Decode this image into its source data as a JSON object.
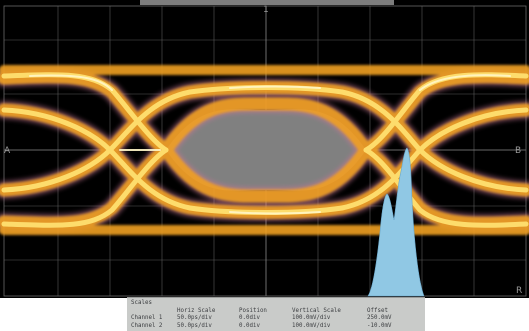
{
  "markers": {
    "top": "1",
    "left": "A",
    "right": "B",
    "bottom_right": "R"
  },
  "scale_panel": {
    "title": "Scales",
    "columns": [
      "Horiz Scale",
      "Position",
      "Vertical Scale",
      "Offset"
    ],
    "rows": [
      {
        "label": "Channel 1",
        "horiz_scale": "50.0ps/div",
        "position": "0.0div",
        "vertical_scale": "100.0mV/div",
        "offset": "250.0mV"
      },
      {
        "label": "Channel 2",
        "horiz_scale": "50.0ps/div",
        "position": "0.0div",
        "vertical_scale": "100.0mV/div",
        "offset": "-10.0mV"
      }
    ]
  },
  "colors": {
    "background": "#000000",
    "grid": "#5a5a5a",
    "eye_hot": "#ffe070",
    "eye_mid": "#f0a020",
    "eye_edge": "#c87896",
    "eye_opening": "#808080",
    "histogram": "#90c8e4"
  }
}
